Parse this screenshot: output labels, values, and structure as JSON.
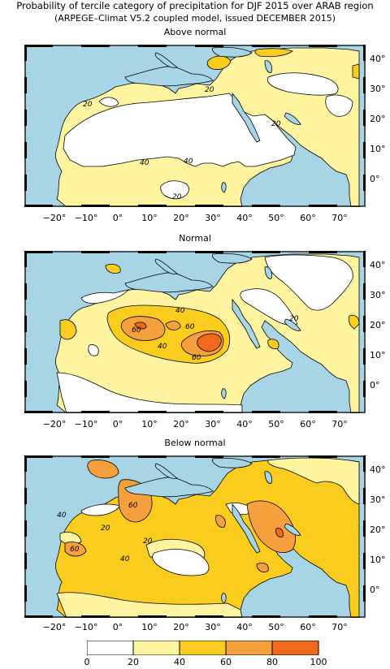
{
  "title": "Probability of tercile category of precipitation for DJF 2015 over ARAB region",
  "subtitle": "(ARPEGE–Climat V5.2 coupled model, issued DECEMBER 2015)",
  "panels": [
    {
      "title": "Above normal",
      "contour_labels": [
        "20",
        "20",
        "20",
        "40",
        "40",
        "20"
      ]
    },
    {
      "title": "Normal",
      "contour_labels": [
        "40",
        "60",
        "40",
        "60",
        "60",
        "20"
      ]
    },
    {
      "title": "Below normal",
      "contour_labels": [
        "40",
        "60",
        "20",
        "20",
        "60",
        "40"
      ]
    }
  ],
  "lat_labels": [
    "40°",
    "30°",
    "20°",
    "10°",
    "0°"
  ],
  "lon_labels": [
    "−20°",
    "−10°",
    "0°",
    "10°",
    "20°",
    "30°",
    "40°",
    "50°",
    "60°",
    "70°"
  ],
  "colorbar": {
    "ticks": [
      "0",
      "20",
      "40",
      "60",
      "80",
      "100"
    ],
    "colors": [
      "#ffffff",
      "#fff5a0",
      "#f9cc1e",
      "#f5a03c",
      "#f06a1e"
    ]
  },
  "colors": {
    "sea": "#a8d5e5",
    "land_low": "#ffffff"
  }
}
